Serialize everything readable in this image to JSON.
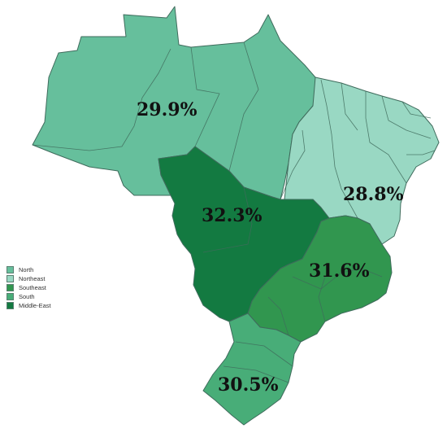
{
  "map": {
    "regions": [
      {
        "id": "north",
        "name": "North",
        "value": "29.9%",
        "color": "#66bf9c"
      },
      {
        "id": "northeast",
        "name": "Northeast",
        "value": "28.8%",
        "color": "#99d8c3"
      },
      {
        "id": "southeast",
        "name": "Southeast",
        "value": "31.6%",
        "color": "#31964f"
      },
      {
        "id": "south",
        "name": "South",
        "value": "30.5%",
        "color": "#48ad78"
      },
      {
        "id": "middle_east",
        "name": "Middle-East",
        "value": "32.3%",
        "color": "#137a41"
      }
    ]
  },
  "legend": {
    "items": [
      {
        "label": "North",
        "color": "#66bf9c"
      },
      {
        "label": "Northeast",
        "color": "#99d8c3"
      },
      {
        "label": "Southeast",
        "color": "#31964f"
      },
      {
        "label": "South",
        "color": "#48ad78"
      },
      {
        "label": "Middle-East",
        "color": "#137a41"
      }
    ]
  }
}
